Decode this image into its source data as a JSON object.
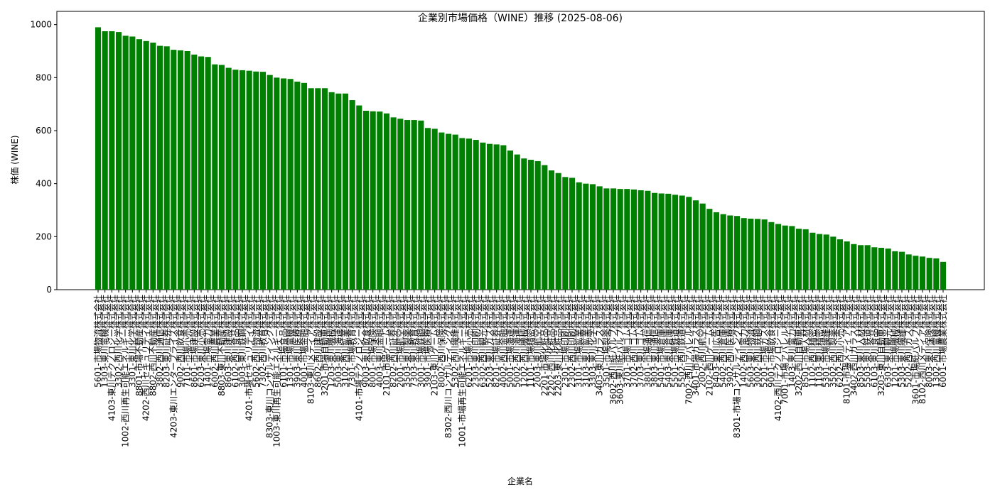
{
  "chart_data": {
    "type": "bar",
    "title": "企業別市場価格（WINE）推移 (2025-08-06)",
    "xlabel": "企業名",
    "ylabel": "株価 (WINE)",
    "color": "#008000",
    "ylim": [
      0,
      1050
    ],
    "yticks": [
      0,
      200,
      400,
      600,
      800,
      1000
    ],
    "grid": false,
    "categories": [
      "5601-市場物流株式会社",
      "1303-東川電機株式会社",
      "4103-東川テクノロジー株式会社",
      "3302-西川化学株式会社",
      "1002-西川再生可能エネルギー株式会社",
      "3301-東川化学株式会社",
      "8801-市場不動産株式会社",
      "4202-西川セキュリティ株式会社",
      "8802-西川不動産株式会社",
      "3802-西川通信株式会社",
      "8203-東川証券株式会社",
      "4203-東川エンタープライズ株式会社",
      "9002-西川飲食株式会社",
      "7101-市場小売株式会社",
      "8601-市場建設株式会社",
      "6203-東川小売株式会社",
      "1401-市場電力株式会社",
      "6002-西川農業株式会社",
      "8803-東川不動産株式会社",
      "8603-東川建設株式会社",
      "6102-西川食品株式会社",
      "3003-東川鉄鋼株式会社",
      "4201-市場セキュリティ株式会社",
      "5602-西川物流株式会社",
      "7302-西川教育株式会社",
      "8303-東川コンサルティング株式会社",
      "1003-東川再生可能エネルギー株式会社",
      "6101-市場食品株式会社",
      "1301-市場電機株式会社",
      "3903-東川医療株式会社",
      "4001-市場金融株式会社",
      "8103-東川メディア株式会社",
      "8602-西川建設株式会社",
      "3201-市場自動車株式会社",
      "1203-東川機械株式会社",
      "5003-東川海運株式会社",
      "3102-西川鉱業株式会社",
      "7301-市場教育株式会社",
      "4101-市場テクノロジー株式会社",
      "9003-東川飲食株式会社",
      "8001-市場保険株式会社",
      "4003-東川金融株式会社",
      "2101-市場ゲーム株式会社",
      "8202-西川証券株式会社",
      "2001-市場航空株式会社",
      "3503-東川製薬株式会社",
      "7303-東川教育株式会社",
      "3001-市場鉄鋼株式会社",
      "3901-市場医療株式会社",
      "2103-東川ゲーム株式会社",
      "8002-西川保険株式会社",
      "8302-西川コンサルティング株式会社",
      "5302-西川繊維株式会社",
      "1001-市場再生可能エネルギー株式会社",
      "6201-市場小売株式会社",
      "2303-東川印刷株式会社",
      "6302-西川観光株式会社",
      "5203-東川ガス株式会社",
      "8201-市場証券株式会社",
      "4002-西川金融株式会社",
      "5001-市場海運株式会社",
      "5002-西川海運株式会社",
      "1202-西川機械株式会社",
      "1101-市場精密株式会社",
      "2003-東川航空株式会社",
      "2201-市場化粧品株式会社",
      "2202-西川化粧品株式会社",
      "2203-東川化粧品株式会社",
      "2301-市場印刷株式会社",
      "2302-西川印刷株式会社",
      "3101-市場鉱業株式会社",
      "3103-東川鉱業株式会社",
      "3303-東川化学株式会社",
      "3403-東川ガラス株式会社",
      "3501-市場製薬株式会社",
      "3602-西川紙パルプ株式会社",
      "3603-東川紙パルプ株式会社",
      "3701-市場ゴム株式会社",
      "3702-西川ゴム株式会社",
      "3703-東川ゴム株式会社",
      "3801-市場通信株式会社",
      "3803-東川通信株式会社",
      "5401-市場倉庫株式会社",
      "5403-東川倉庫株式会社",
      "5501-市場鉄道株式会社",
      "5502-西川鉄道株式会社",
      "7002-西川アパレル株式会社",
      "3401-市場ガラス株式会社",
      "2002-西川航空株式会社",
      "2102-西川ゲーム株式会社",
      "8403-東川広告株式会社",
      "5402-西川倉庫株式会社",
      "3902-西川医療株式会社",
      "8301-市場コンサルティング株式会社",
      "1402-西川電力株式会社",
      "5603-東川物流株式会社",
      "3002-西川鉄鋼株式会社",
      "5201-市場ガス株式会社",
      "9001-市場飲食株式会社",
      "4102-西川テクノロジー株式会社",
      "7001-市場アパレル株式会社",
      "1403-東川電力株式会社",
      "3202-西川自動車株式会社",
      "8501-市場人材株式会社",
      "1102-西川精密株式会社",
      "1103-東川精密株式会社",
      "5301-市場繊維株式会社",
      "3502-西川製薬株式会社",
      "6202-西川小売株式会社",
      "8101-市場メディア株式会社",
      "3402-西川ガラス株式会社",
      "8503-東川人材株式会社",
      "5503-東川鉄道株式会社",
      "6103-東川食品株式会社",
      "3203-東川自動車株式会社",
      "6303-東川観光株式会社",
      "1201-市場機械株式会社",
      "5303-東川繊維株式会社",
      "5202-西川ガス株式会社",
      "3601-市場紙パルプ株式会社",
      "8102-西川メディア株式会社",
      "8003-東川保険株式会社",
      "1302-西川電機株式会社",
      "6001-市場農業株式会社"
    ],
    "values": [
      990,
      975,
      975,
      972,
      958,
      955,
      945,
      938,
      932,
      920,
      918,
      905,
      903,
      900,
      887,
      880,
      878,
      850,
      848,
      837,
      830,
      828,
      826,
      823,
      822,
      810,
      800,
      797,
      795,
      785,
      780,
      760,
      760,
      760,
      745,
      740,
      740,
      715,
      695,
      675,
      673,
      672,
      665,
      650,
      645,
      640,
      640,
      638,
      610,
      607,
      593,
      588,
      585,
      572,
      570,
      565,
      555,
      550,
      548,
      545,
      525,
      510,
      495,
      490,
      485,
      470,
      450,
      440,
      425,
      422,
      405,
      400,
      398,
      390,
      382,
      382,
      380,
      380,
      378,
      375,
      373,
      365,
      363,
      362,
      358,
      355,
      350,
      337,
      325,
      305,
      292,
      285,
      280,
      278,
      270,
      268,
      267,
      265,
      255,
      248,
      242,
      240,
      230,
      228,
      215,
      210,
      208,
      200,
      190,
      182,
      172,
      168,
      168,
      160,
      158,
      155,
      145,
      143,
      133,
      128,
      125,
      120,
      118,
      105
    ]
  }
}
